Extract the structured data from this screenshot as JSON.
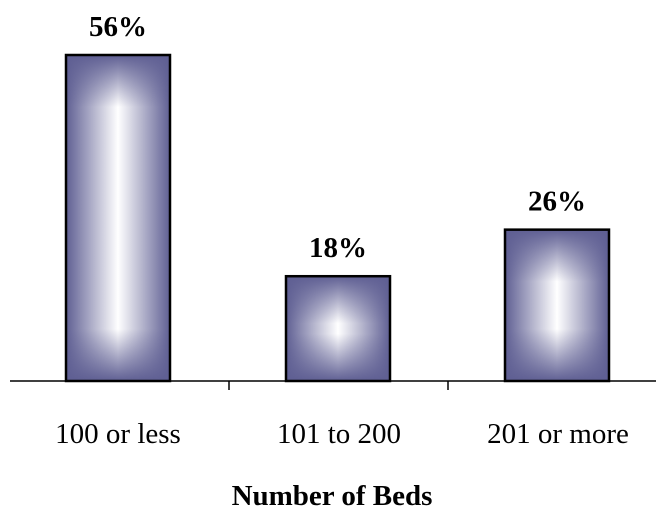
{
  "chart_data": {
    "type": "bar",
    "categories": [
      "100 or less",
      "101 to 200",
      "201 or more"
    ],
    "values": [
      56,
      18,
      26
    ],
    "value_labels": [
      "56%",
      "18%",
      "26%"
    ],
    "title": "",
    "xlabel": "Number of Beds",
    "ylabel": "",
    "ylim": [
      0,
      56
    ],
    "grid": false,
    "legend": "none",
    "colors": {
      "bar_edge": "#5f5f93",
      "bar_center": "#ffffff",
      "bar_outline": "#000000"
    }
  }
}
